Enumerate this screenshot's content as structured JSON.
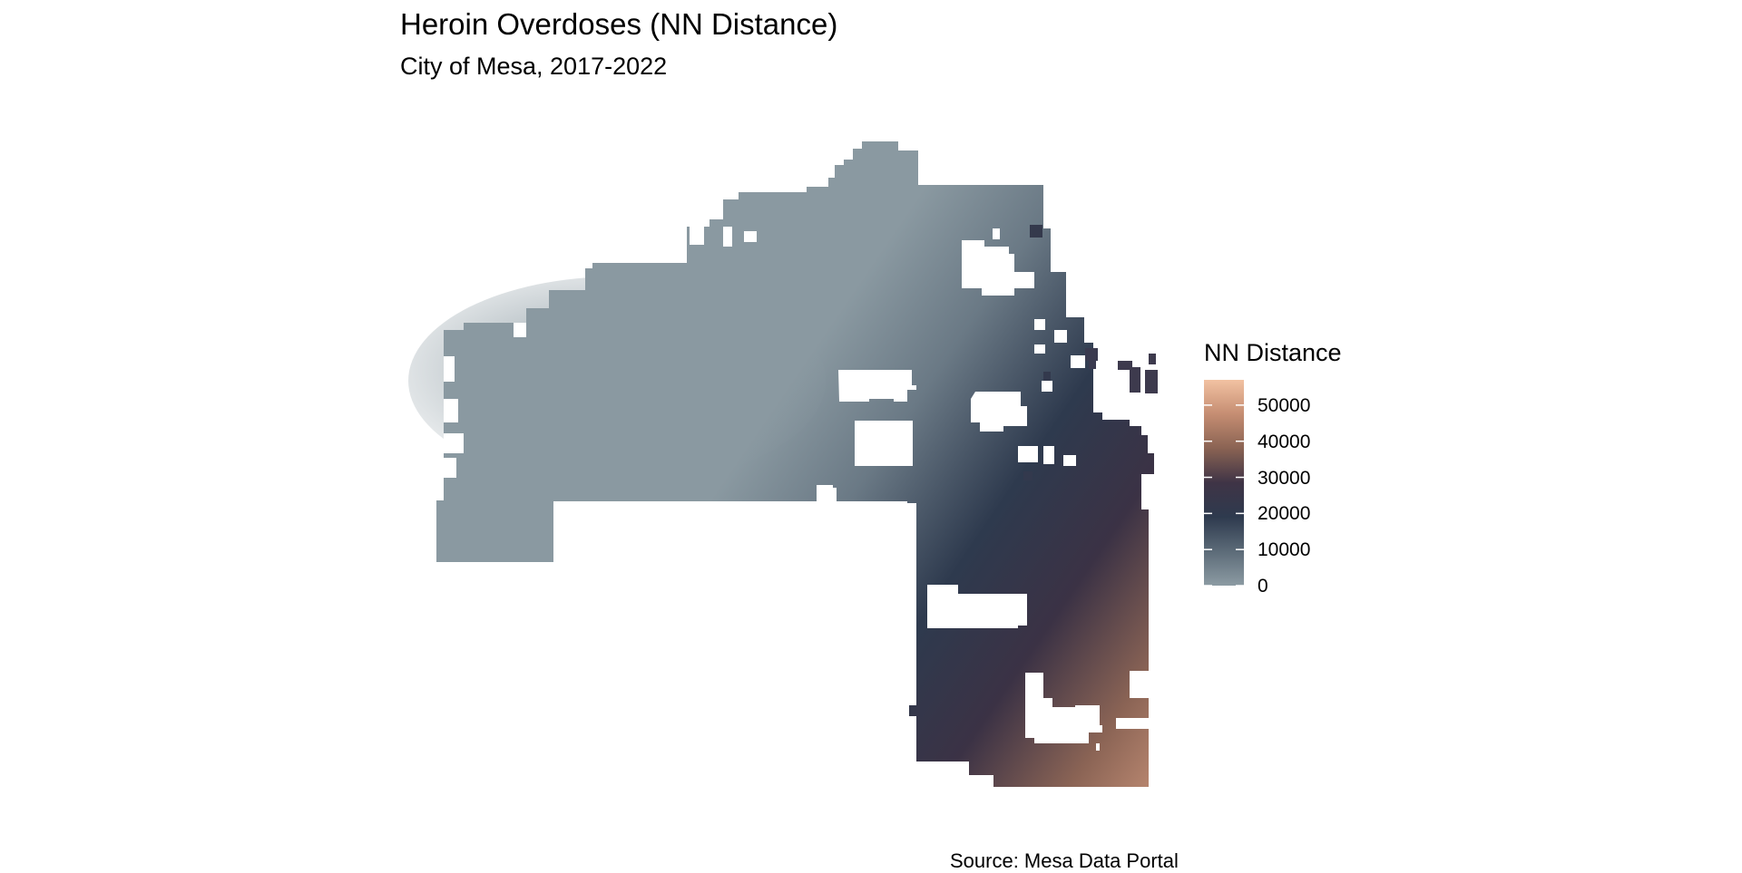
{
  "title": "Heroin Overdoses (NN Distance)",
  "subtitle": "City of Mesa, 2017-2022",
  "caption": "Source: Mesa Data Portal",
  "legend": {
    "title": "NN Distance",
    "ticks": [
      {
        "label": "50000",
        "value": 50000
      },
      {
        "label": "40000",
        "value": 40000
      },
      {
        "label": "30000",
        "value": 30000
      },
      {
        "label": "20000",
        "value": 20000
      },
      {
        "label": "10000",
        "value": 10000
      },
      {
        "label": "0",
        "value": 0
      }
    ],
    "range": [
      0,
      57000
    ],
    "palette": [
      "#8c9ba3",
      "#5c6b78",
      "#2e3a4e",
      "#3f3446",
      "#8a6353",
      "#c58d72",
      "#f2c2a2"
    ]
  },
  "map": {
    "type": "fishnet-raster",
    "region": "City of Mesa",
    "fill_variable": "NN Distance",
    "no_data_color": "#ffffff"
  }
}
